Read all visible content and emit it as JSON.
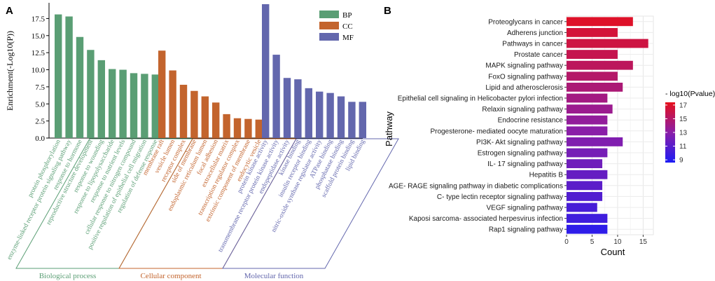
{
  "panel_labels": {
    "a": "A",
    "b": "B"
  },
  "chart_data": [
    {
      "type": "bar",
      "panel": "A",
      "ylabel": "Enrichment(-Log10(P))",
      "ylim": [
        0,
        19.8
      ],
      "yticks": [
        0.0,
        2.5,
        5.0,
        7.5,
        10.0,
        12.5,
        15.0,
        17.5
      ],
      "ytick_labels": [
        "0.0",
        "2.5",
        "5.0",
        "7.5",
        "10.0",
        "12.5",
        "15.0",
        "17.5"
      ],
      "legend": {
        "position": "top-right",
        "entries": [
          "BP",
          "CC",
          "MF"
        ]
      },
      "groups": [
        {
          "key": "BP",
          "color": "#5a9e74",
          "group_label": "Biological process",
          "categories": [
            "protein phosphorylation",
            "enzyme-linked receptor protein signaling pathway",
            "response to hormone",
            "reproductive structure development",
            "response to wounding",
            "response to lipopolysaccharide",
            "response to nutrient levels",
            "cellular response to nitrogen compound",
            "positive regulation of epithelial cell migration",
            "regulation of defense response"
          ],
          "values": [
            18.1,
            17.8,
            14.8,
            12.9,
            11.4,
            10.1,
            10.0,
            9.5,
            9.4,
            9.3
          ]
        },
        {
          "key": "CC",
          "color": "#c3642d",
          "group_label": "Cellular component",
          "categories": [
            "membrane raft",
            "vesicle lumen",
            "receptor complex",
            "side of membrane",
            "endoplasmic reticulum lumen",
            "focal adhesion",
            "extracellular matrix",
            "transcription regulator complex",
            "extrinsic component of membrane",
            "endocytic vesicle"
          ],
          "values": [
            12.8,
            9.9,
            7.8,
            6.9,
            6.1,
            5.2,
            3.5,
            2.9,
            2.8,
            2.7
          ]
        },
        {
          "key": "MF",
          "color": "#6367ad",
          "group_label": "Molecular function",
          "categories": [
            "protein kinase activity",
            "transmembrane receptor protein kinase activity",
            "endopeptidase activity",
            "kinase binding",
            "insulin receptor binding",
            "nitric-oxide synthase regulator activity",
            "ATPase binding",
            "phosphatase binding",
            "scaffold protein binding",
            "lipid binding"
          ],
          "values": [
            19.6,
            12.2,
            8.8,
            8.6,
            7.3,
            6.8,
            6.6,
            6.1,
            5.3,
            5.3
          ]
        }
      ]
    },
    {
      "type": "bar",
      "orientation": "horizontal",
      "panel": "B",
      "xlabel": "Count",
      "ylabel": "Pathway",
      "xlim": [
        0,
        17
      ],
      "xticks": [
        0,
        5,
        10,
        15
      ],
      "xtick_labels": [
        "0",
        "5",
        "10",
        "15"
      ],
      "grid": true,
      "colorbar": {
        "title": "- log10(Pvalue)",
        "range": [
          8.6,
          17.4
        ],
        "ticks": [
          9,
          11,
          13,
          15,
          17
        ],
        "tick_labels": [
          "9",
          "11",
          "13",
          "15",
          "17"
        ],
        "low_color": "#1c1cf5",
        "mid_color": "#8a1ea8",
        "high_color": "#e6101c"
      },
      "categories": [
        "Proteoglycans in cancer",
        "Adherens junction",
        "Pathways in cancer",
        "Prostate cancer",
        "MAPK signaling pathway",
        "FoxO signaling pathway",
        "Lipid and atherosclerosis",
        "Epithelial cell signaling in Helicobacter pylori infection",
        "Relaxin signaling pathway",
        "Endocrine resistance",
        "Progesterone- mediated oocyte maturation",
        "PI3K- Akt signaling pathway",
        "Estrogen signaling pathway",
        "IL- 17 signaling pathway",
        "Hepatitis B",
        "AGE- RAGE signaling pathway in diabetic complications",
        "C- type lectin receptor signaling pathway",
        "VEGF signaling pathway",
        "Kaposi sarcoma- associated herpesvirus infection",
        "Rap1 signaling pathway"
      ],
      "values": [
        13,
        10,
        16,
        10,
        13,
        10,
        11,
        8,
        9,
        8,
        8,
        11,
        8,
        7,
        8,
        7,
        7,
        6,
        8,
        8
      ],
      "pvalues": [
        17.0,
        16.5,
        16.2,
        15.8,
        15.4,
        15.0,
        14.6,
        14.2,
        13.8,
        13.4,
        13.0,
        12.6,
        12.2,
        11.9,
        11.5,
        11.1,
        10.7,
        10.3,
        10.0,
        9.3
      ]
    }
  ]
}
